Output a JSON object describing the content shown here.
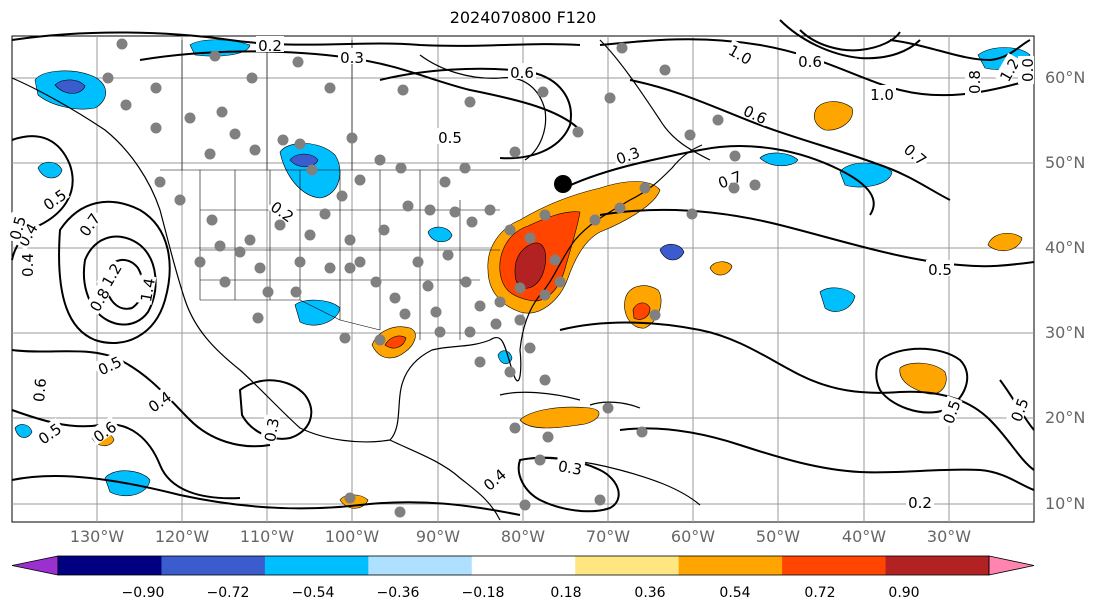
{
  "title": "2024070800 F120",
  "colors": {
    "ocean": "#ffffff",
    "grid": "#9a9a9a",
    "coast": "#000000",
    "station": "#808080",
    "storm_marker": "#000000"
  },
  "lat_labels": [
    "60°N",
    "50°N",
    "40°N",
    "30°N",
    "20°N",
    "10°N"
  ],
  "lon_labels": [
    "130°W",
    "120°W",
    "110°W",
    "100°W",
    "90°W",
    "80°W",
    "70°W",
    "60°W",
    "50°W",
    "40°W",
    "30°W"
  ],
  "colorbar": {
    "ticks": [
      "−0.90",
      "−0.72",
      "−0.54",
      "−0.36",
      "−0.18",
      "0.18",
      "0.36",
      "0.54",
      "0.72",
      "0.90"
    ],
    "colors": [
      "#9b30d0",
      "#000080",
      "#3b5ccc",
      "#00bfff",
      "#aee0ff",
      "#ffffff",
      "#ffe680",
      "#ffa500",
      "#ff4500",
      "#b22222",
      "#ff85b0"
    ]
  },
  "contour_labels": [
    "0.2",
    "0.3",
    "0.6",
    "1.0",
    "0.6",
    "1.2",
    "0.8",
    "0.0",
    "1.0",
    "0.6",
    "0.7",
    "0.5",
    "0.3",
    "0.2",
    "0.5",
    "0.7",
    "0.4",
    "0.5",
    "0.6",
    "0.5",
    "0.4",
    "0.6",
    "0.5",
    "0.3",
    "0.3",
    "0.4",
    "0.5",
    "0.5",
    "0.2",
    "0.8",
    "1.2",
    "1.4",
    "0.4",
    "0.5",
    "0.7"
  ]
}
